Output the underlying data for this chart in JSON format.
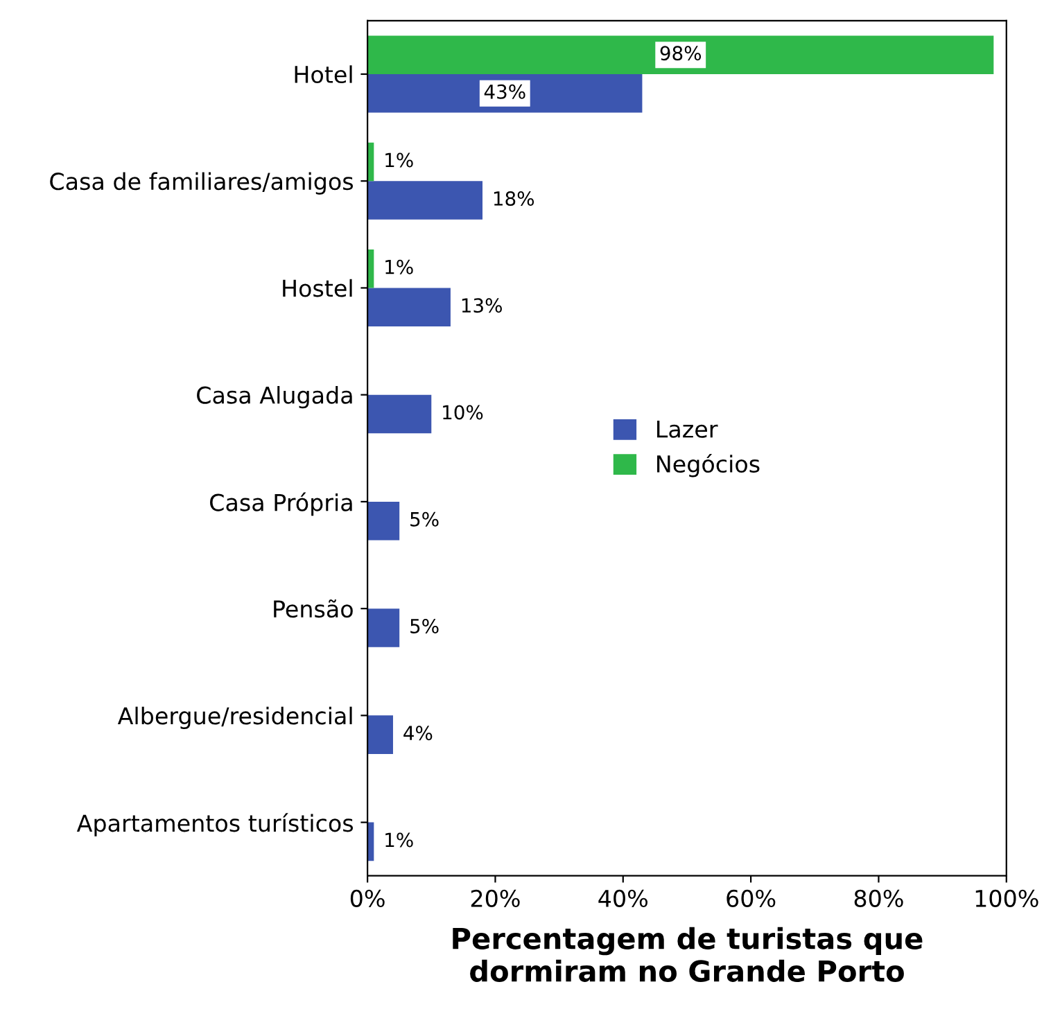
{
  "chart_data": {
    "type": "bar",
    "orientation": "horizontal",
    "categories": [
      "Hotel",
      "Casa de familiares/amigos",
      "Hostel",
      "Casa Alugada",
      "Casa Própria",
      "Pensão",
      "Albergue/residencial",
      "Apartamentos turísticos"
    ],
    "series": [
      {
        "name": "Lazer",
        "color": "#3c56b0",
        "values": [
          43,
          18,
          13,
          10,
          5,
          5,
          4,
          1
        ],
        "value_labels": [
          "43%",
          "18%",
          "13%",
          "10%",
          "5%",
          "5%",
          "4%",
          "1%"
        ]
      },
      {
        "name": "Negócios",
        "color": "#2fb84a",
        "values": [
          98,
          1,
          1,
          null,
          null,
          null,
          null,
          null
        ],
        "value_labels": [
          "98%",
          "1%",
          "1%",
          null,
          null,
          null,
          null,
          null
        ]
      }
    ],
    "xlabel": "Percentagem de turistas que\ndormiram no Grande Porto",
    "xlim": [
      0,
      100
    ],
    "xticks": [
      {
        "value": 0,
        "label": "0%"
      },
      {
        "value": 20,
        "label": "20%"
      },
      {
        "value": 40,
        "label": "40%"
      },
      {
        "value": 60,
        "label": "60%"
      },
      {
        "value": 80,
        "label": "80%"
      },
      {
        "value": 100,
        "label": "100%"
      }
    ],
    "legend": "center",
    "grid": false
  }
}
